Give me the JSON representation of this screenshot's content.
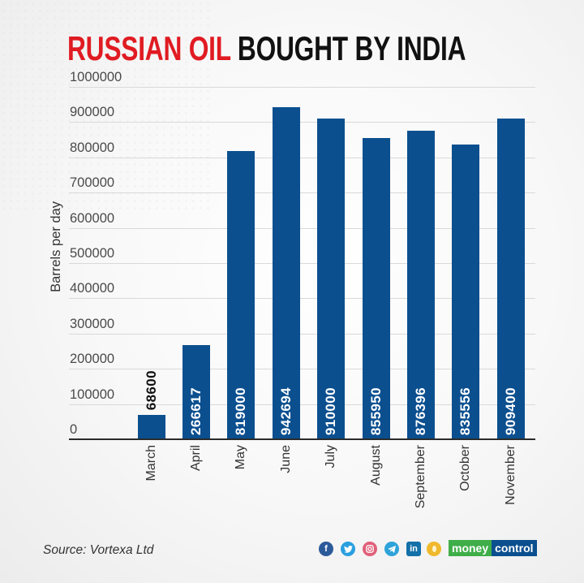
{
  "title": {
    "part1": "RUSSIAN OIL",
    "part2": "BOUGHT BY INDIA"
  },
  "chart_data": {
    "type": "bar",
    "title": "RUSSIAN OIL BOUGHT BY INDIA",
    "categories": [
      "March",
      "April",
      "May",
      "June",
      "July",
      "August",
      "September",
      "October",
      "November"
    ],
    "values": [
      68600,
      266617,
      819000,
      942694,
      910000,
      855950,
      876396,
      835556,
      909400
    ],
    "data_labels": [
      "68600",
      "266617",
      "819000",
      "942694",
      "910000",
      "855950",
      "876396",
      "835556",
      "909400"
    ],
    "xlabel": "",
    "ylabel": "Barrels per day",
    "ylim": [
      0,
      1000000
    ],
    "yticks": [
      0,
      100000,
      200000,
      300000,
      400000,
      500000,
      600000,
      700000,
      800000,
      900000,
      1000000
    ],
    "ytick_labels": [
      "0",
      "100000",
      "200000",
      "300000",
      "400000",
      "500000",
      "600000",
      "700000",
      "800000",
      "900000",
      "1000000"
    ],
    "grid": true,
    "legend": null,
    "x_tick_rotation": -90,
    "data_label_rotation": -90,
    "bar_color": "#0b4f8f"
  },
  "footer": {
    "source": "Source: Vortexa Ltd",
    "social_icons": [
      {
        "name": "facebook-icon",
        "glyph": "f",
        "color": "#2d5b9a"
      },
      {
        "name": "twitter-icon",
        "glyph": "",
        "color": "#2a9fe0"
      },
      {
        "name": "instagram-icon",
        "glyph": "",
        "color": "#e0607a"
      },
      {
        "name": "telegram-icon",
        "glyph": "",
        "color": "#2ea3d9"
      },
      {
        "name": "linkedin-icon",
        "glyph": "in",
        "color": "#1470a8"
      },
      {
        "name": "koo-icon",
        "glyph": "",
        "color": "#f0b92d"
      }
    ],
    "brand": {
      "part1": "money",
      "part2": "control"
    }
  },
  "colors": {
    "title_red": "#e01b22",
    "title_black": "#111111",
    "bar_blue": "#0b4f8f",
    "brand_green": "#3fae49"
  }
}
